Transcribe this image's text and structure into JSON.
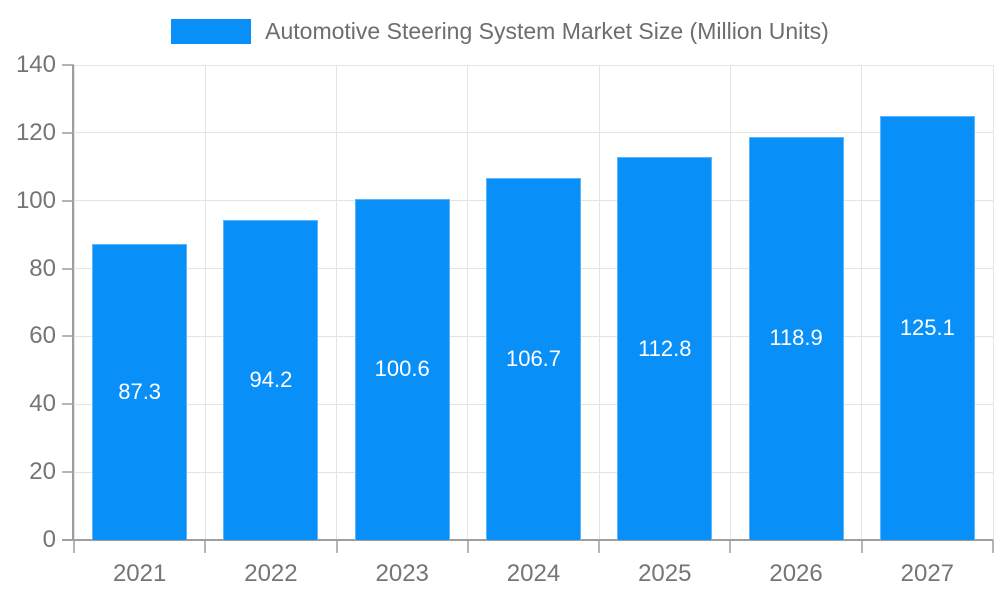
{
  "legend": {
    "label": "Automotive Steering System Market Size (Million Units)"
  },
  "chart_data": {
    "type": "bar",
    "title": "Automotive Steering System Market Size (Million Units)",
    "series_name": "Automotive Steering System Market Size (Million Units)",
    "categories": [
      "2021",
      "2022",
      "2023",
      "2024",
      "2025",
      "2026",
      "2027"
    ],
    "values": [
      87.3,
      94.2,
      100.6,
      106.7,
      112.8,
      118.9,
      125.1
    ],
    "value_labels": [
      "87.3",
      "94.2",
      "100.6",
      "106.7",
      "112.8",
      "118.9",
      "125.1"
    ],
    "xlabel": "",
    "ylabel": "",
    "ylim": [
      0,
      140
    ],
    "yticks": [
      0,
      20,
      40,
      60,
      80,
      100,
      120,
      140
    ],
    "grid": true,
    "legend_position": "top",
    "colors": {
      "bar": "#0990f8",
      "gridline": "#e4e4e4",
      "axis_line": "#9e9e9e",
      "tick": "#b5b5b5",
      "axis_label": "#757575",
      "legend_label": "#6d6d6d",
      "value_label": "#ffffff"
    }
  }
}
